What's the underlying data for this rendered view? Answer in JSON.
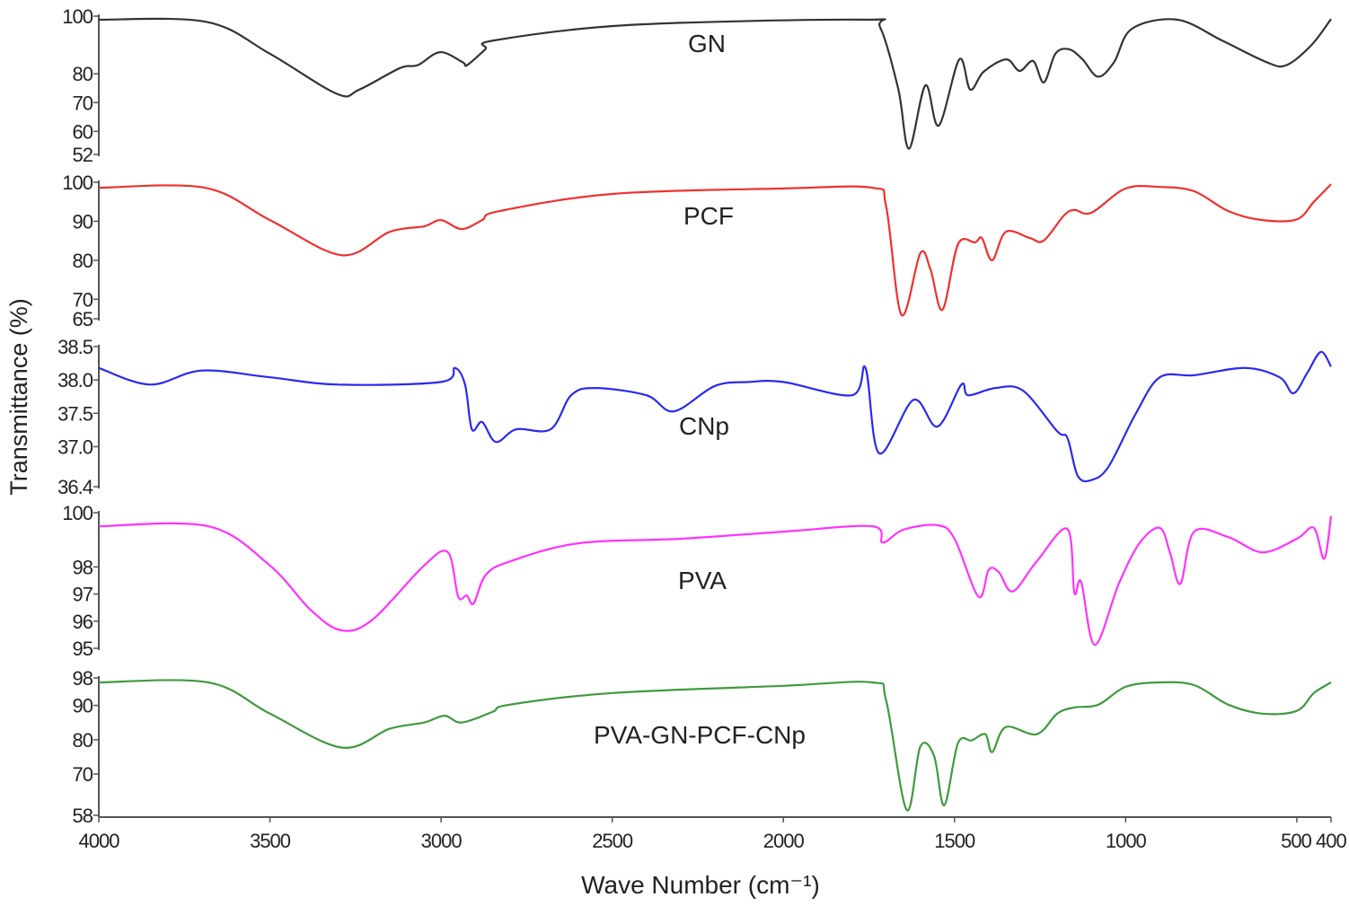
{
  "chart_data": {
    "type": "line",
    "title": "",
    "xlabel": "Wave Number (cm⁻¹)",
    "ylabel": "Transmittance (%)",
    "xlim": [
      4000,
      400
    ],
    "x_ticks": [
      "4000",
      "3500",
      "3000",
      "2500",
      "2000",
      "1500",
      "1000",
      "500",
      "400"
    ],
    "x_tick_values": [
      4000,
      3500,
      3000,
      2500,
      2000,
      1500,
      1000,
      500,
      400
    ],
    "grid": false,
    "series": [
      {
        "name": "GN",
        "color": "#333333",
        "ylim": [
          52,
          100
        ],
        "y_ticks": [
          100,
          80,
          70,
          60,
          52
        ],
        "points": [
          [
            4000,
            98.8
          ],
          [
            3685,
            98
          ],
          [
            3501,
            87
          ],
          [
            3304,
            73
          ],
          [
            3239,
            74.5
          ],
          [
            3120,
            82
          ],
          [
            3068,
            83
          ],
          [
            3003,
            87.5
          ],
          [
            2937,
            84
          ],
          [
            2924,
            83
          ],
          [
            2871,
            88.5
          ],
          [
            2845,
            91.6
          ],
          [
            2451,
            96.9
          ],
          [
            1769,
            98.8
          ],
          [
            1717,
            96
          ],
          [
            1664,
            74.5
          ],
          [
            1633,
            54
          ],
          [
            1585,
            76
          ],
          [
            1546,
            62
          ],
          [
            1486,
            85
          ],
          [
            1454,
            74.5
          ],
          [
            1415,
            80.7
          ],
          [
            1349,
            85
          ],
          [
            1310,
            81
          ],
          [
            1270,
            84.4
          ],
          [
            1239,
            77
          ],
          [
            1205,
            87
          ],
          [
            1165,
            88.5
          ],
          [
            1126,
            85
          ],
          [
            1081,
            79
          ],
          [
            1034,
            84
          ],
          [
            982,
            95.6
          ],
          [
            850,
            98.8
          ],
          [
            719,
            91.6
          ],
          [
            588,
            84
          ],
          [
            530,
            83
          ],
          [
            457,
            90
          ],
          [
            400,
            99
          ]
        ]
      },
      {
        "name": "PCF",
        "color": "#f03030",
        "ylim": [
          65,
          100
        ],
        "y_ticks": [
          100,
          90,
          80,
          70,
          65
        ],
        "points": [
          [
            4000,
            98.6
          ],
          [
            3690,
            98.6
          ],
          [
            3500,
            90.3
          ],
          [
            3290,
            81.3
          ],
          [
            3150,
            87.3
          ],
          [
            3050,
            88.7
          ],
          [
            3000,
            90.3
          ],
          [
            2940,
            88
          ],
          [
            2880,
            90.3
          ],
          [
            2830,
            92.6
          ],
          [
            2500,
            97
          ],
          [
            2000,
            98.4
          ],
          [
            1740,
            98.6
          ],
          [
            1700,
            93.8
          ],
          [
            1655,
            66
          ],
          [
            1600,
            81.8
          ],
          [
            1570,
            77.6
          ],
          [
            1535,
            67.3
          ],
          [
            1490,
            84.1
          ],
          [
            1440,
            84.6
          ],
          [
            1420,
            85.7
          ],
          [
            1390,
            80
          ],
          [
            1350,
            87.3
          ],
          [
            1280,
            85.7
          ],
          [
            1240,
            85
          ],
          [
            1180,
            91.5
          ],
          [
            1150,
            92.9
          ],
          [
            1100,
            92.2
          ],
          [
            1000,
            98.4
          ],
          [
            900,
            98.8
          ],
          [
            800,
            97.7
          ],
          [
            700,
            92.6
          ],
          [
            600,
            90.3
          ],
          [
            500,
            90.5
          ],
          [
            450,
            95
          ],
          [
            400,
            99.5
          ]
        ]
      },
      {
        "name": "CNp",
        "color": "#2a2af0",
        "ylim": [
          36.4,
          38.5
        ],
        "y_ticks": [
          38.5,
          38.0,
          37.5,
          37.0,
          36.4
        ],
        "y_tick_labels": [
          "38.5",
          "38.0",
          "37.5",
          "37.0",
          "36.4"
        ],
        "points": [
          [
            4000,
            38.18
          ],
          [
            3850,
            37.93
          ],
          [
            3700,
            38.14
          ],
          [
            3500,
            38.04
          ],
          [
            3300,
            37.93
          ],
          [
            3000,
            37.97
          ],
          [
            2960,
            38.18
          ],
          [
            2930,
            37.93
          ],
          [
            2910,
            37.26
          ],
          [
            2880,
            37.37
          ],
          [
            2840,
            37.07
          ],
          [
            2780,
            37.26
          ],
          [
            2680,
            37.26
          ],
          [
            2620,
            37.77
          ],
          [
            2550,
            37.88
          ],
          [
            2400,
            37.77
          ],
          [
            2320,
            37.53
          ],
          [
            2200,
            37.91
          ],
          [
            2100,
            37.97
          ],
          [
            2000,
            37.97
          ],
          [
            1800,
            37.77
          ],
          [
            1760,
            38.18
          ],
          [
            1720,
            36.9
          ],
          [
            1620,
            37.7
          ],
          [
            1550,
            37.3
          ],
          [
            1480,
            37.93
          ],
          [
            1460,
            37.77
          ],
          [
            1380,
            37.88
          ],
          [
            1300,
            37.84
          ],
          [
            1200,
            37.23
          ],
          [
            1170,
            37.13
          ],
          [
            1140,
            36.56
          ],
          [
            1100,
            36.5
          ],
          [
            1050,
            36.7
          ],
          [
            970,
            37.5
          ],
          [
            900,
            38.04
          ],
          [
            800,
            38.07
          ],
          [
            650,
            38.18
          ],
          [
            550,
            38.04
          ],
          [
            510,
            37.8
          ],
          [
            470,
            38.1
          ],
          [
            430,
            38.42
          ],
          [
            400,
            38.2
          ]
        ]
      },
      {
        "name": "PVA",
        "color": "#ff33ff",
        "ylim": [
          95,
          100
        ],
        "y_ticks": [
          100,
          98,
          97,
          96,
          95
        ],
        "points": [
          [
            4000,
            99.5
          ],
          [
            3680,
            99.5
          ],
          [
            3500,
            98.05
          ],
          [
            3380,
            96.4
          ],
          [
            3290,
            95.66
          ],
          [
            3200,
            96.06
          ],
          [
            3050,
            98.05
          ],
          [
            2980,
            98.54
          ],
          [
            2950,
            96.9
          ],
          [
            2925,
            96.95
          ],
          [
            2905,
            96.65
          ],
          [
            2870,
            97.7
          ],
          [
            2800,
            98.2
          ],
          [
            2600,
            98.87
          ],
          [
            2300,
            99.04
          ],
          [
            2000,
            99.3
          ],
          [
            1740,
            99.5
          ],
          [
            1710,
            98.9
          ],
          [
            1650,
            99.37
          ],
          [
            1550,
            99.54
          ],
          [
            1500,
            99.04
          ],
          [
            1430,
            96.9
          ],
          [
            1400,
            97.9
          ],
          [
            1370,
            97.8
          ],
          [
            1330,
            97.1
          ],
          [
            1260,
            98.2
          ],
          [
            1170,
            99.4
          ],
          [
            1150,
            97.05
          ],
          [
            1130,
            97.45
          ],
          [
            1090,
            95.13
          ],
          [
            1020,
            97.38
          ],
          [
            960,
            98.87
          ],
          [
            900,
            99.44
          ],
          [
            870,
            98.5
          ],
          [
            840,
            97.38
          ],
          [
            800,
            99.3
          ],
          [
            700,
            99.1
          ],
          [
            600,
            98.54
          ],
          [
            500,
            99.04
          ],
          [
            450,
            99.44
          ],
          [
            420,
            98.3
          ],
          [
            400,
            99.87
          ]
        ]
      },
      {
        "name": "PVA-GN-PCF-CNp",
        "color": "#3f9a3f",
        "ylim": [
          58,
          98
        ],
        "y_ticks": [
          98,
          90,
          80,
          70,
          58
        ],
        "points": [
          [
            4000,
            96.7
          ],
          [
            3680,
            96.7
          ],
          [
            3500,
            87.6
          ],
          [
            3290,
            77.7
          ],
          [
            3150,
            83.2
          ],
          [
            3050,
            85
          ],
          [
            2990,
            87
          ],
          [
            2940,
            85
          ],
          [
            2850,
            88.1
          ],
          [
            2800,
            90.2
          ],
          [
            2500,
            93.6
          ],
          [
            2000,
            95.7
          ],
          [
            1740,
            96.7
          ],
          [
            1700,
            91.5
          ],
          [
            1640,
            59.6
          ],
          [
            1600,
            78
          ],
          [
            1560,
            75.4
          ],
          [
            1530,
            60.9
          ],
          [
            1490,
            79
          ],
          [
            1450,
            79.8
          ],
          [
            1410,
            81.6
          ],
          [
            1390,
            76.4
          ],
          [
            1350,
            83.7
          ],
          [
            1260,
            81.6
          ],
          [
            1200,
            87.6
          ],
          [
            1150,
            89.4
          ],
          [
            1080,
            90.2
          ],
          [
            1000,
            95.4
          ],
          [
            900,
            96.7
          ],
          [
            800,
            95.9
          ],
          [
            700,
            90.2
          ],
          [
            600,
            87.6
          ],
          [
            500,
            88.4
          ],
          [
            450,
            93.6
          ],
          [
            400,
            96.7
          ]
        ]
      }
    ]
  }
}
